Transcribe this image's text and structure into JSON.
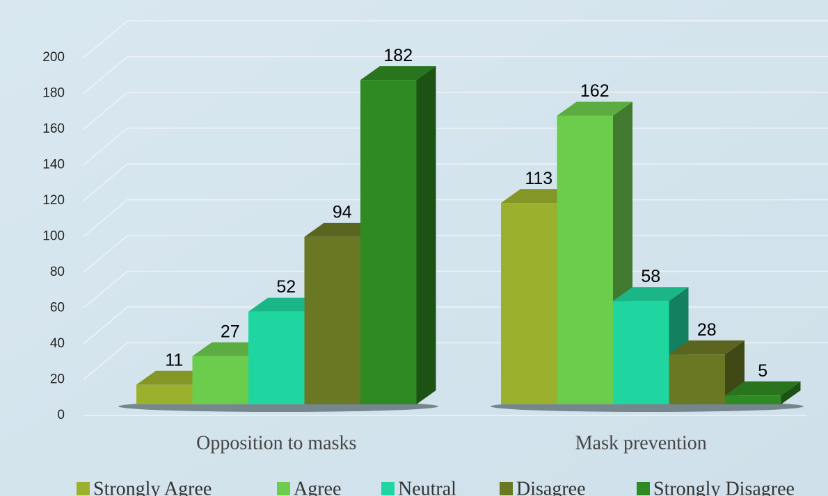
{
  "chart_data": {
    "type": "bar3d",
    "categories": [
      "Opposition to masks",
      "Mask prevention"
    ],
    "series": [
      {
        "name": "Strongly Agree",
        "color": "#9bb02c",
        "values": [
          11,
          113
        ]
      },
      {
        "name": "Agree",
        "color": "#6ccc4c",
        "values": [
          27,
          162
        ]
      },
      {
        "name": "Neutral",
        "color": "#1fd6a0",
        "values": [
          52,
          58
        ]
      },
      {
        "name": "Disagree",
        "color": "#6a7824",
        "values": [
          94,
          28
        ]
      },
      {
        "name": "Strongly Disagree",
        "color": "#2f8a23",
        "values": [
          182,
          5
        ]
      }
    ],
    "ylim": [
      0,
      200
    ],
    "yticks": [
      0,
      20,
      40,
      60,
      80,
      100,
      120,
      140,
      160,
      180,
      200
    ],
    "grid": true,
    "legend": "bottom"
  }
}
